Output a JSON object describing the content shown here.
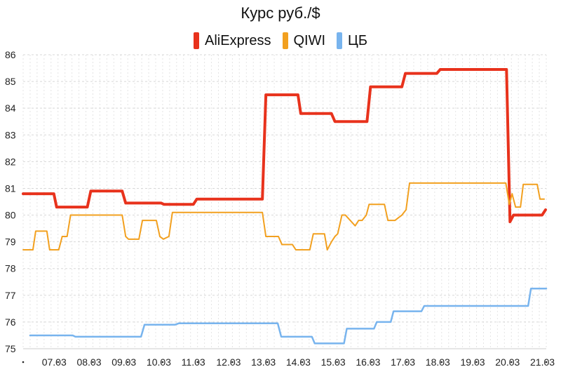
{
  "chart_data": {
    "type": "line",
    "title": "Курс руб./$",
    "xlabel": "",
    "ylabel": "",
    "x_tick_labels": [
      "07.03",
      "08.03",
      "09.03",
      "10.03",
      "11.03",
      "12.03",
      "13.03",
      "14.03",
      "15.03",
      "16.03",
      "17.03",
      "18.03",
      "19.03",
      "20.03",
      "21.03"
    ],
    "x_tick_positions": [
      1,
      2,
      3,
      4,
      5,
      6,
      7,
      8,
      9,
      10,
      11,
      12,
      13,
      14,
      15
    ],
    "xlim": [
      0,
      15
    ],
    "y_ticks": [
      75,
      76,
      77,
      78,
      79,
      80,
      81,
      82,
      83,
      84,
      85,
      86
    ],
    "ylim": [
      75,
      86
    ],
    "legend_position": "top-center",
    "grid": true,
    "series": [
      {
        "name": "AliExpress",
        "color": "#e8321c",
        "x": [
          0,
          0.88,
          0.96,
          1.84,
          1.94,
          2.84,
          2.94,
          3.96,
          4.04,
          4.88,
          4.98,
          6.86,
          6.96,
          7.88,
          7.96,
          8.84,
          8.94,
          9.86,
          9.96,
          10.86,
          10.96,
          11.86,
          11.96,
          13.86,
          13.96,
          14.06,
          14.14,
          14.88,
          14.98
        ],
        "y": [
          80.8,
          80.8,
          80.3,
          80.3,
          80.9,
          80.9,
          80.45,
          80.45,
          80.4,
          80.4,
          80.6,
          80.6,
          84.5,
          84.5,
          83.8,
          83.8,
          83.5,
          83.5,
          84.8,
          84.8,
          85.3,
          85.3,
          85.45,
          85.45,
          79.75,
          80.0,
          80.0,
          80.0,
          80.2
        ]
      },
      {
        "name": "QIWI",
        "color": "#f2a01f",
        "x": [
          0,
          0.28,
          0.36,
          0.68,
          0.76,
          1.02,
          1.12,
          1.26,
          1.36,
          2.84,
          2.94,
          3.02,
          3.32,
          3.42,
          3.82,
          3.92,
          4.02,
          4.18,
          4.28,
          6.86,
          6.96,
          7.32,
          7.42,
          7.72,
          7.82,
          8.22,
          8.32,
          8.64,
          8.72,
          8.84,
          8.94,
          9.02,
          9.14,
          9.24,
          9.52,
          9.62,
          9.72,
          9.84,
          9.92,
          10.02,
          10.12,
          10.36,
          10.46,
          10.66,
          10.76,
          10.86,
          10.98,
          11.08,
          11.16,
          13.84,
          13.94,
          14.02,
          14.12,
          14.26,
          14.34,
          14.74,
          14.82,
          14.94
        ],
        "y": [
          78.7,
          78.7,
          79.4,
          79.4,
          78.7,
          78.7,
          79.2,
          79.2,
          80.0,
          80.0,
          79.2,
          79.1,
          79.1,
          79.8,
          79.8,
          79.2,
          79.1,
          79.2,
          80.1,
          80.1,
          79.2,
          79.2,
          78.9,
          78.9,
          78.7,
          78.7,
          79.3,
          79.3,
          78.7,
          79.0,
          79.2,
          79.3,
          80.0,
          80.0,
          79.6,
          79.8,
          79.8,
          80.0,
          80.4,
          80.4,
          80.4,
          80.4,
          79.8,
          79.8,
          79.9,
          80.0,
          80.2,
          81.2,
          81.2,
          81.2,
          80.4,
          80.8,
          80.3,
          80.3,
          81.15,
          81.15,
          80.6,
          80.6
        ]
      },
      {
        "name": "ЦБ",
        "color": "#78b4ee",
        "x": [
          0.2,
          1.42,
          1.5,
          3.38,
          3.48,
          4.36,
          4.46,
          7.3,
          7.4,
          8.28,
          8.36,
          9.2,
          9.28,
          10.06,
          10.14,
          10.54,
          10.62,
          11.42,
          11.5,
          14.48,
          14.56,
          15
        ],
        "y": [
          75.5,
          75.5,
          75.45,
          75.45,
          75.9,
          75.9,
          75.95,
          75.95,
          75.45,
          75.45,
          75.2,
          75.2,
          75.75,
          75.75,
          76.0,
          76.0,
          76.4,
          76.4,
          76.6,
          76.6,
          77.25,
          77.25
        ]
      }
    ]
  }
}
